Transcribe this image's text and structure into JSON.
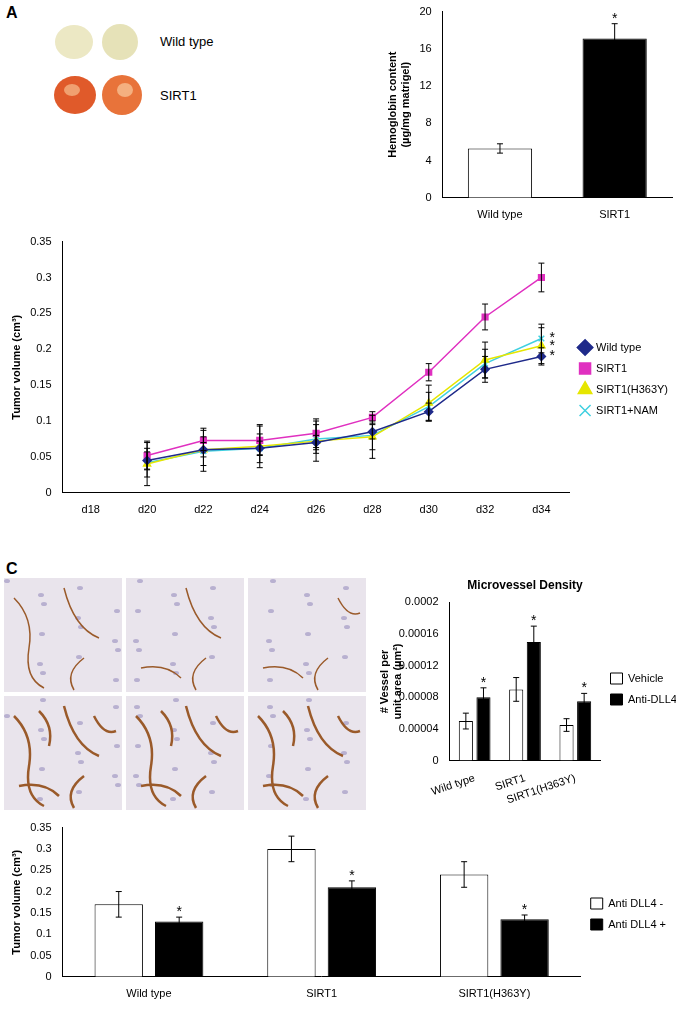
{
  "figure": {
    "panel_labels": [
      "A",
      "C"
    ],
    "plug_labels": [
      "Wild type",
      "SIRT1"
    ]
  },
  "chart_data": [
    {
      "type": "bar",
      "y_label": [
        "Hemoglobin content",
        "(µg/mg matrigel)"
      ],
      "categories": [
        "Wild type",
        "SIRT1"
      ],
      "values": [
        5.3,
        17.1
      ],
      "errors": [
        0.5,
        1.6
      ],
      "colors": [
        "#ffffff",
        "#000000"
      ],
      "ylim": [
        0,
        20
      ],
      "yticks": [
        0,
        4,
        8,
        12,
        16,
        20
      ],
      "grid": false,
      "annotations": [
        {
          "text": "*",
          "category": "SIRT1"
        }
      ]
    },
    {
      "type": "line",
      "y_label": "Tumor volume (cm³)",
      "categories": [
        "d18",
        "d20",
        "d22",
        "d24",
        "d26",
        "d28",
        "d30",
        "d32",
        "d34"
      ],
      "ylim": [
        0,
        0.35
      ],
      "yticks": [
        0,
        0.05,
        0.1,
        0.15,
        0.2,
        0.25,
        0.3,
        0.35
      ],
      "grid": false,
      "legend": "right",
      "series": [
        {
          "name": "Wild type",
          "color": "#1f2a8a",
          "marker": "diamond",
          "values": [
            null,
            0.045,
            0.06,
            0.062,
            0.07,
            0.085,
            0.113,
            0.172,
            0.19
          ],
          "errors": [
            null,
            0.012,
            0.01,
            0.01,
            0.01,
            0.01,
            0.012,
            0.018,
            0.012
          ]
        },
        {
          "name": "SIRT1",
          "color": "#e030c0",
          "marker": "square",
          "values": [
            null,
            0.052,
            0.073,
            0.073,
            0.083,
            0.105,
            0.168,
            0.245,
            0.3
          ],
          "errors": [
            null,
            0.02,
            0.014,
            0.02,
            0.02,
            0.008,
            0.012,
            0.018,
            0.02
          ]
        },
        {
          "name": "SIRT1(H363Y)",
          "color": "#e6e600",
          "marker": "triangle",
          "values": [
            null,
            0.04,
            0.06,
            0.065,
            0.072,
            0.078,
            0.125,
            0.185,
            0.205
          ],
          "errors": [
            null,
            0.03,
            0.03,
            0.03,
            0.028,
            0.03,
            0.025,
            0.025,
            0.025
          ]
        },
        {
          "name": "SIRT1+NAM",
          "color": "#40d0e0",
          "marker": "cross",
          "values": [
            null,
            0.042,
            0.058,
            0.062,
            0.075,
            0.08,
            0.12,
            0.18,
            0.215
          ],
          "errors": [
            null,
            0.02,
            0.02,
            0.02,
            0.02,
            0.02,
            0.02,
            0.02,
            0.02
          ]
        }
      ],
      "annotations": [
        {
          "text": "*",
          "series": "Wild type",
          "category": "d34"
        },
        {
          "text": "*",
          "series": "SIRT1(H363Y)",
          "category": "d34"
        },
        {
          "text": "*",
          "series": "SIRT1+NAM",
          "category": "d34"
        }
      ]
    },
    {
      "type": "bar",
      "title": "Microvessel Density",
      "y_label": [
        "# Vessel per",
        "unit area (µm²)"
      ],
      "categories": [
        "Wild type",
        "SIRT1",
        "SIRT1(H363Y)"
      ],
      "ylim": [
        0,
        0.0002
      ],
      "yticks": [
        0,
        4e-05,
        8e-05,
        0.00012,
        0.00016,
        0.0002
      ],
      "grid": false,
      "legend": "right",
      "series": [
        {
          "name": "Vehicle",
          "color": "#ffffff",
          "values": [
            5e-05,
            9e-05,
            4.5e-05
          ],
          "errors": [
            1e-05,
            1.5e-05,
            8e-06
          ]
        },
        {
          "name": "Anti-DLL4",
          "color": "#000000",
          "values": [
            8e-05,
            0.00015,
            7.5e-05
          ],
          "errors": [
            1.2e-05,
            2e-05,
            1e-05
          ]
        }
      ],
      "annotations": [
        {
          "text": "*",
          "series": "Anti-DLL4",
          "category": "Wild type"
        },
        {
          "text": "*",
          "series": "Anti-DLL4",
          "category": "SIRT1"
        },
        {
          "text": "*",
          "series": "Anti-DLL4",
          "category": "SIRT1(H363Y)"
        }
      ]
    },
    {
      "type": "bar",
      "y_label": "Tumor volume (cm³)",
      "categories": [
        "Wild type",
        "SIRT1",
        "SIRT1(H363Y)"
      ],
      "ylim": [
        0,
        0.35
      ],
      "yticks": [
        0,
        0.05,
        0.1,
        0.15,
        0.2,
        0.25,
        0.3,
        0.35
      ],
      "grid": false,
      "legend": "right",
      "series": [
        {
          "name": "Anti DLL4 -",
          "color": "#ffffff",
          "values": [
            0.17,
            0.3,
            0.24
          ],
          "errors": [
            0.03,
            0.03,
            0.03
          ]
        },
        {
          "name": "Anti DLL4 +",
          "color": "#000000",
          "values": [
            0.13,
            0.21,
            0.135
          ],
          "errors": [
            0.01,
            0.015,
            0.01
          ]
        }
      ],
      "annotations": [
        {
          "text": "*",
          "series": "Anti DLL4 +",
          "category": "Wild type"
        },
        {
          "text": "*",
          "series": "Anti DLL4 +",
          "category": "SIRT1"
        },
        {
          "text": "*",
          "series": "Anti DLL4 +",
          "category": "SIRT1(H363Y)"
        }
      ]
    }
  ]
}
